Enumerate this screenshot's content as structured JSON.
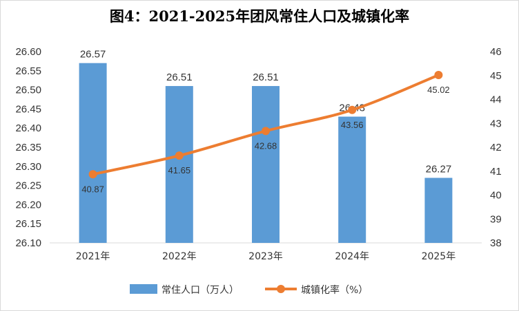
{
  "chart_data": {
    "type": "bar",
    "title": "图4：2021-2025年团风常住人口及城镇化率",
    "categories": [
      "2021年",
      "2022年",
      "2023年",
      "2024年",
      "2025年"
    ],
    "series": [
      {
        "name": "常住人口（万人）",
        "type": "bar",
        "axis": "left",
        "color": "#5b9bd5",
        "values": [
          26.57,
          26.51,
          26.51,
          26.43,
          26.27
        ]
      },
      {
        "name": "城镇化率（%）",
        "type": "line",
        "axis": "right",
        "color": "#ed7d31",
        "values": [
          40.87,
          41.65,
          42.68,
          43.56,
          45.02
        ]
      }
    ],
    "y_left": {
      "min": 26.1,
      "max": 26.6,
      "ticks": [
        "26.60",
        "26.55",
        "26.50",
        "26.45",
        "26.40",
        "26.35",
        "26.30",
        "26.25",
        "26.20",
        "26.15",
        "26.10"
      ]
    },
    "y_right": {
      "min": 38,
      "max": 46,
      "ticks": [
        "46",
        "45",
        "44",
        "43",
        "42",
        "41",
        "40",
        "39",
        "38"
      ]
    },
    "grid": false,
    "legend_position": "bottom"
  }
}
